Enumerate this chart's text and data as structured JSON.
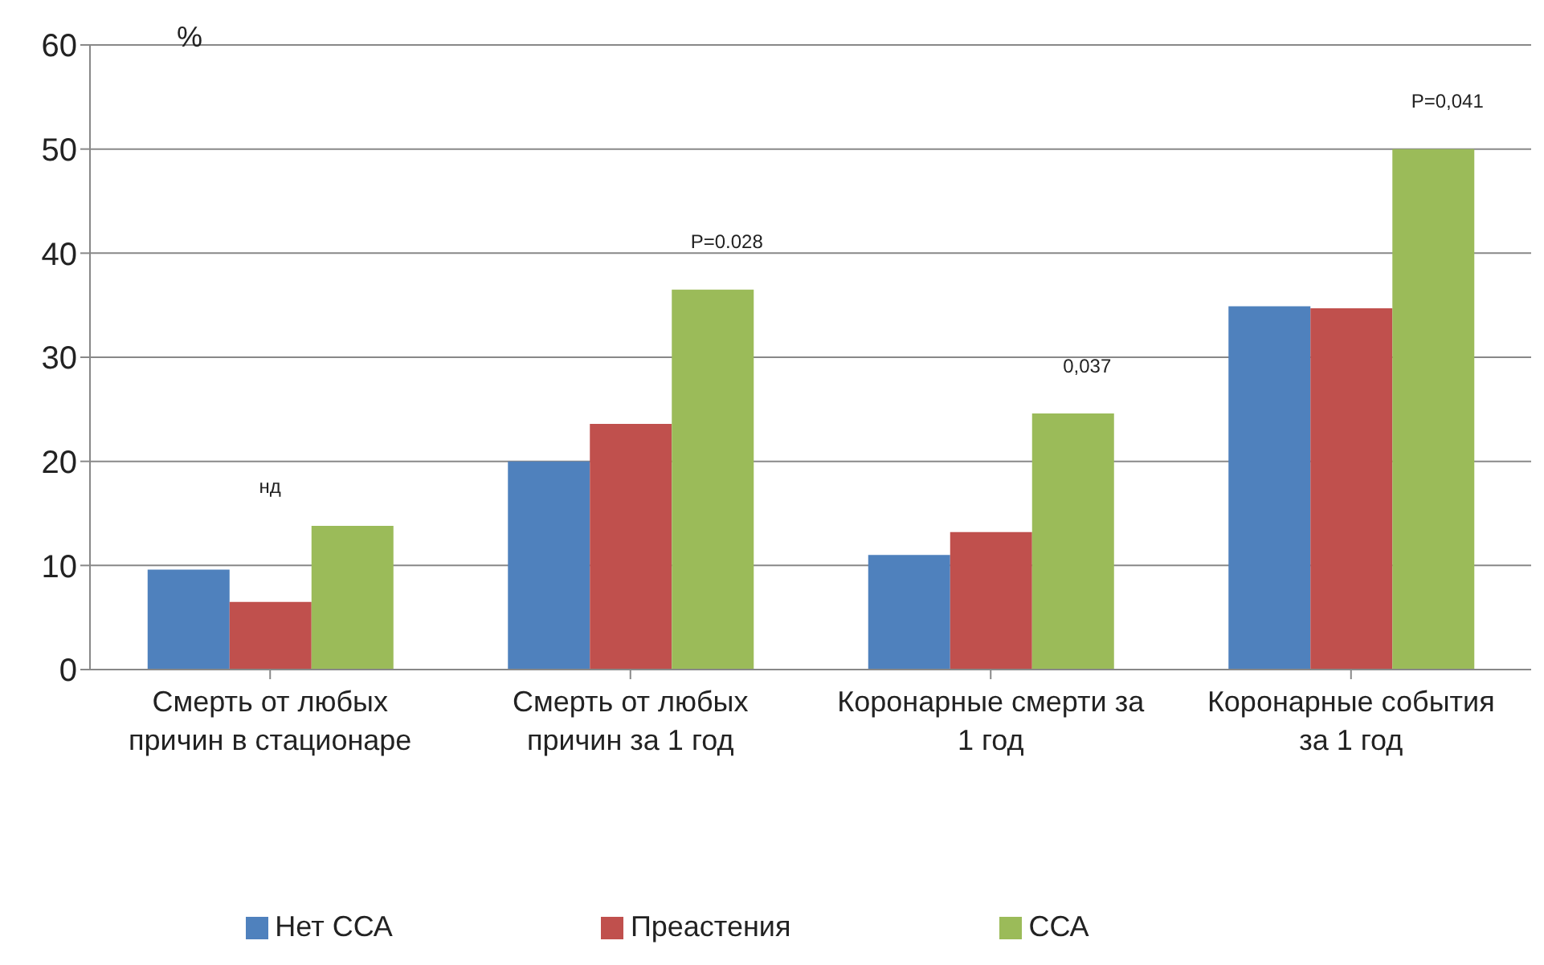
{
  "chart_data": {
    "type": "bar",
    "ylabel": "%",
    "categories": [
      "Смерть от любых причин в стационаре",
      "Смерть от любых причин за 1 год",
      "Коронарные смерти за 1 год",
      "Коронарные события за 1 год"
    ],
    "series": [
      {
        "name": "Нет ССА",
        "color": "#4f81bd",
        "values": [
          9.6,
          20,
          11,
          34.9
        ]
      },
      {
        "name": "Преастения",
        "color": "#c0504d",
        "values": [
          6.5,
          23.6,
          13.2,
          34.7
        ]
      },
      {
        "name": "ССА",
        "color": "#9bbb59",
        "values": [
          13.8,
          36.5,
          24.6,
          50
        ]
      }
    ],
    "ylim": [
      0,
      60
    ],
    "yticks": [
      0,
      10,
      20,
      30,
      40,
      50,
      60
    ],
    "grid": "y",
    "legend": "bottom",
    "annotations": [
      "нд",
      "P=0.028",
      "0,037",
      "P=0,041"
    ]
  }
}
